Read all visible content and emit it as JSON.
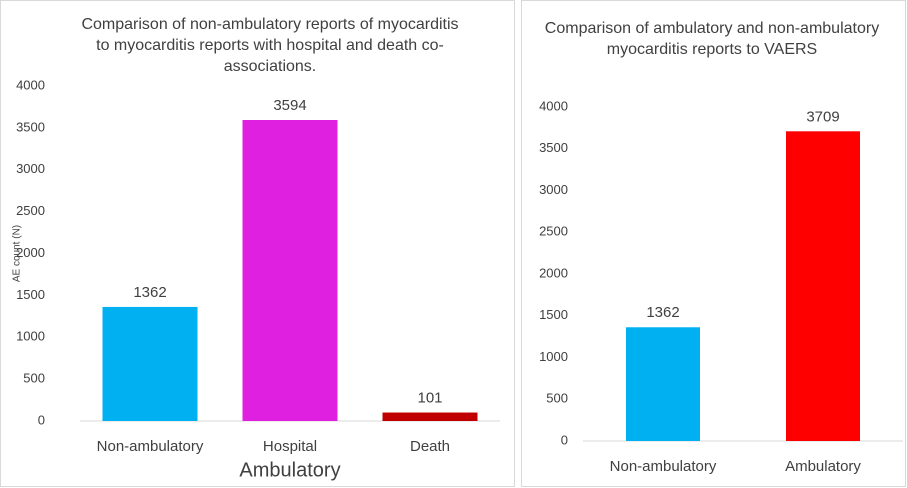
{
  "chart_data": [
    {
      "type": "bar",
      "title": "Comparison of non-ambulatory reports of myocarditis to myocarditis reports with hospital and death co-associations.",
      "ylabel": "AE count (N)",
      "xlabel": "Ambulatory",
      "categories": [
        "Non-ambulatory",
        "Hospital",
        "Death"
      ],
      "values": [
        1362,
        3594,
        101
      ],
      "colors": [
        "#00b0f0",
        "#e020e0",
        "#c00000"
      ],
      "ylim": [
        0,
        4000
      ],
      "yticks": [
        0,
        500,
        1000,
        1500,
        2000,
        2500,
        3000,
        3500,
        4000
      ]
    },
    {
      "type": "bar",
      "title": "Comparison of ambulatory and non-ambulatory myocarditis reports to VAERS",
      "categories": [
        "Non-ambulatory",
        "Ambulatory"
      ],
      "values": [
        1362,
        3709
      ],
      "colors": [
        "#00b0f0",
        "#ff0000"
      ],
      "ylim": [
        0,
        4000
      ],
      "yticks": [
        0,
        500,
        1000,
        1500,
        2000,
        2500,
        3000,
        3500,
        4000
      ]
    }
  ]
}
